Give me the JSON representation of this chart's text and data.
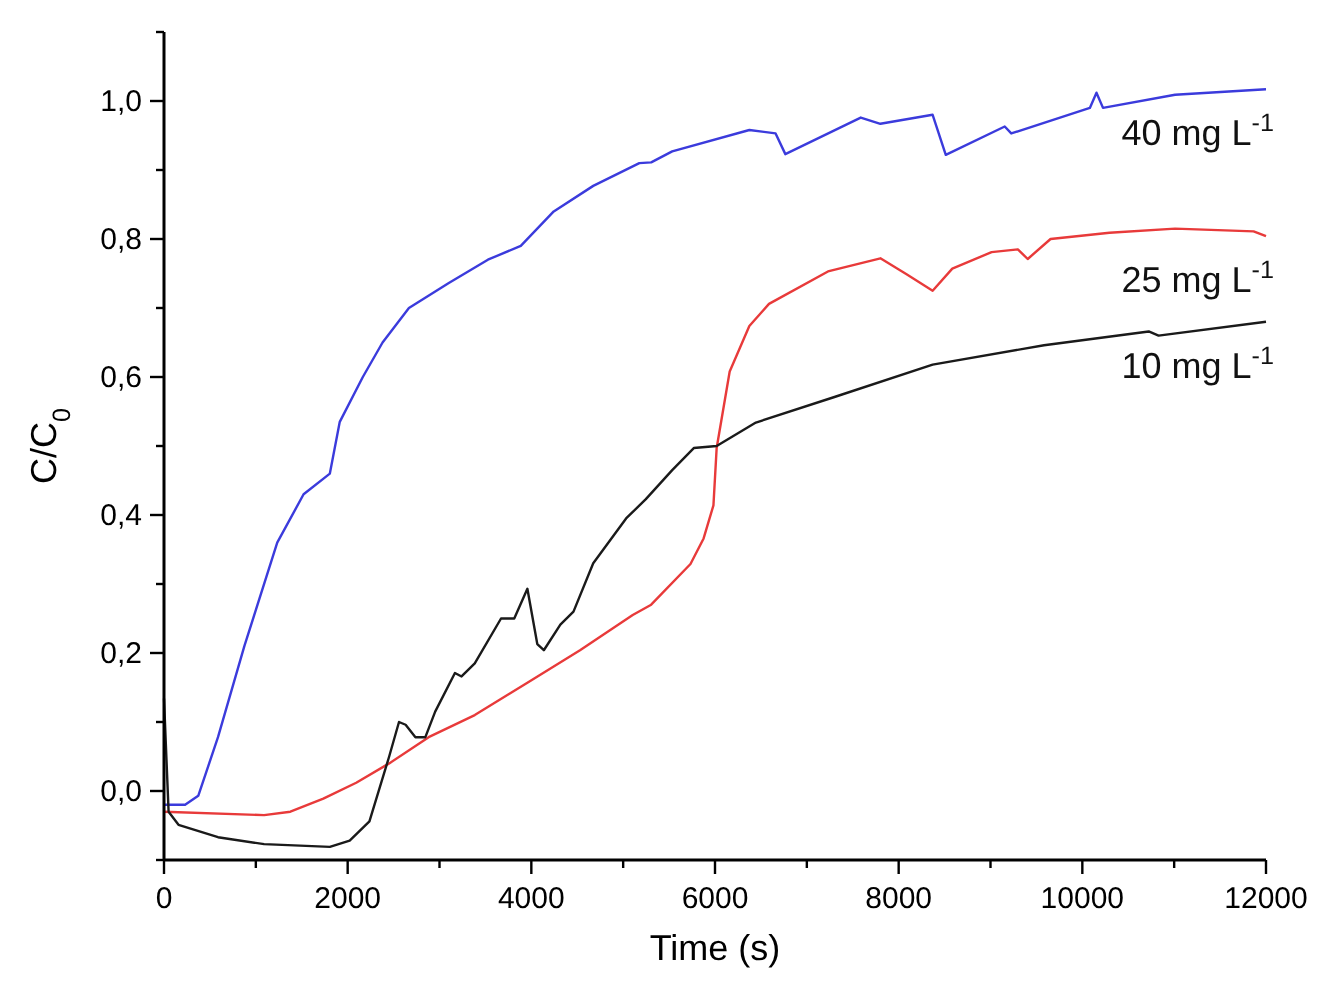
{
  "chart_data": {
    "type": "line",
    "xlabel": "Time (s)",
    "ylabel": "C/C$_{0}$",
    "xlim": [
      0,
      12000
    ],
    "ylim": [
      -0.1,
      1.1
    ],
    "xticks": [
      0,
      {
        "value": 1000,
        "label": null
      },
      2000,
      {
        "value": 3000,
        "label": null
      },
      4000,
      {
        "value": 5000,
        "label": null
      },
      6000,
      {
        "value": 7000,
        "label": null
      },
      8000,
      {
        "value": 9000,
        "label": null
      },
      10000,
      {
        "value": 11000,
        "label": null
      },
      12000
    ],
    "yticks": [
      {
        "value": -0.1,
        "label": null
      },
      {
        "value": 0,
        "label": "0,0"
      },
      {
        "value": 0.1,
        "label": null
      },
      {
        "value": 0.2,
        "label": "0,2"
      },
      {
        "value": 0.3,
        "label": null
      },
      {
        "value": 0.4,
        "label": "0,4"
      },
      {
        "value": 0.5,
        "label": null
      },
      {
        "value": 0.6,
        "label": "0,6"
      },
      {
        "value": 0.7,
        "label": null
      },
      {
        "value": 0.8,
        "label": "0,8"
      },
      {
        "value": 0.9,
        "label": null
      },
      {
        "value": 1.0,
        "label": "1,0"
      },
      {
        "value": 1.1,
        "label": null
      }
    ],
    "grid": false,
    "legend": false,
    "marker": "none",
    "line_style": "solid",
    "series": [
      {
        "name": "40 mg L$^{-1}$",
        "color": "#3b3bdc",
        "x": [
          0,
          230,
          373,
          588,
          875,
          1233,
          1520,
          1806,
          1914,
          2165,
          2380,
          2667,
          3097,
          3527,
          3885,
          4244,
          4674,
          5176,
          5305,
          5534,
          6374,
          6660,
          6766,
          7587,
          7801,
          8370,
          8513,
          9155,
          9226,
          10082,
          10154,
          10225,
          11010,
          12000
        ],
        "values": [
          -0.02,
          -0.02,
          -0.007,
          0.078,
          0.21,
          0.36,
          0.43,
          0.46,
          0.535,
          0.6,
          0.65,
          0.7,
          0.736,
          0.77,
          0.79,
          0.84,
          0.877,
          0.91,
          0.911,
          0.927,
          0.958,
          0.953,
          0.923,
          0.976,
          0.967,
          0.98,
          0.922,
          0.963,
          0.953,
          0.99,
          1.012,
          0.99,
          1.009,
          1.017
        ]
      },
      {
        "name": "25 mg L$^{-1}$",
        "color": "#e83a3a",
        "x": [
          0,
          1090,
          1376,
          1735,
          2093,
          2452,
          2882,
          3384,
          3957,
          4530,
          5104,
          5305,
          5733,
          5876,
          5983,
          6018,
          6160,
          6374,
          6588,
          7230,
          7801,
          8086,
          8370,
          8584,
          9012,
          9298,
          9405,
          9654,
          10296,
          11010,
          11865,
          12000
        ],
        "values": [
          -0.03,
          -0.035,
          -0.03,
          -0.011,
          0.012,
          0.04,
          0.078,
          0.11,
          0.157,
          0.204,
          0.255,
          0.27,
          0.329,
          0.366,
          0.414,
          0.497,
          0.608,
          0.674,
          0.706,
          0.753,
          0.772,
          0.749,
          0.725,
          0.757,
          0.781,
          0.785,
          0.771,
          0.8,
          0.809,
          0.815,
          0.811,
          0.804
        ]
      },
      {
        "name": "10 mg L$^{-1}$",
        "color": "#1a1a1a",
        "x": [
          0,
          50,
          158,
          588,
          1090,
          1806,
          2022,
          2237,
          2452,
          2559,
          2631,
          2738,
          2846,
          2953,
          3168,
          3240,
          3384,
          3670,
          3814,
          3957,
          4065,
          4136,
          4316,
          4459,
          4674,
          5032,
          5247,
          5534,
          5769,
          6018,
          6445,
          7301,
          8370,
          9583,
          10723,
          10830,
          12000
        ],
        "values": [
          0.134,
          -0.03,
          -0.049,
          -0.067,
          -0.077,
          -0.081,
          -0.072,
          -0.044,
          0.05,
          0.1,
          0.096,
          0.078,
          0.078,
          0.115,
          0.171,
          0.166,
          0.185,
          0.25,
          0.25,
          0.293,
          0.213,
          0.204,
          0.241,
          0.26,
          0.33,
          0.395,
          0.423,
          0.465,
          0.497,
          0.5,
          0.534,
          0.571,
          0.618,
          0.646,
          0.666,
          0.66,
          0.68
        ]
      }
    ]
  }
}
